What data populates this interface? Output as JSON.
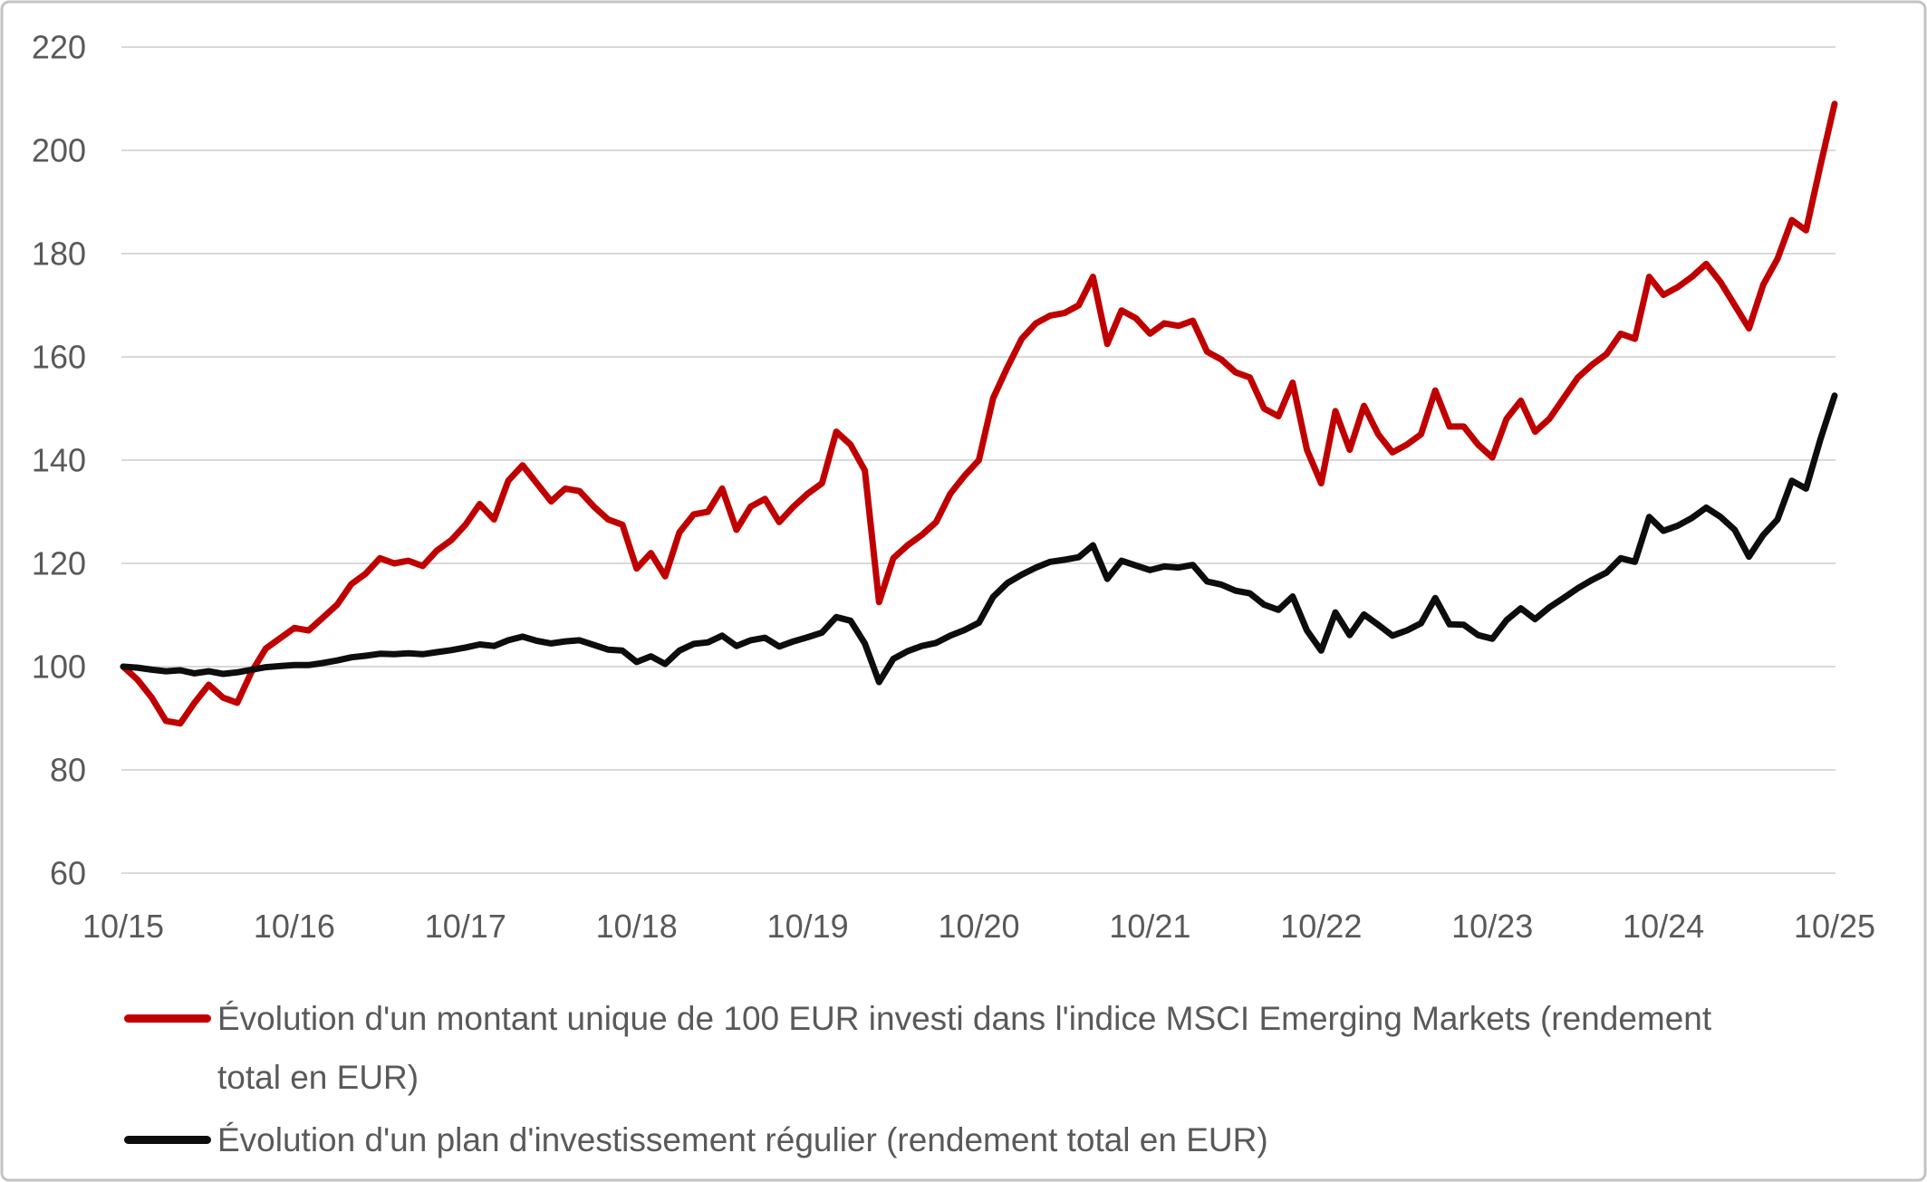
{
  "chart": {
    "background_color": "#FFFFFF",
    "frame_border_color": "#C3C3C3",
    "grid_color": "#D9D9D9",
    "tick_label_color": "#595959",
    "legend_text_color": "#595959"
  },
  "chart_data": {
    "type": "line",
    "title": "",
    "xlabel": "",
    "ylabel": "",
    "x_tick_labels": [
      "10/15",
      "10/16",
      "10/17",
      "10/18",
      "10/19",
      "10/20",
      "10/21",
      "10/22",
      "10/23",
      "10/24",
      "10/25"
    ],
    "points_per_label": 12,
    "n_points": 121,
    "x_range_note": "monthly points from 10/15 to 10/25",
    "ylim": [
      60,
      220
    ],
    "y_ticks": [
      220,
      200,
      180,
      160,
      140,
      120,
      100,
      80,
      60
    ],
    "grid": true,
    "legend_position": "bottom-left",
    "series": [
      {
        "name": "Évolution d'un montant unique de 100 EUR investi dans l'indice MSCI Emerging Markets (rendement total en EUR)",
        "legend_lines": [
          "Évolution d'un montant unique de 100 EUR investi dans l'indice MSCI Emerging Markets (rendement",
          "total en EUR)"
        ],
        "color": "#C00000",
        "values": [
          100,
          97.5,
          94,
          89.5,
          89,
          93,
          96.5,
          94,
          93,
          99,
          103.5,
          105.5,
          107.5,
          107,
          109.5,
          112,
          116,
          118,
          121,
          120,
          120.5,
          119.5,
          122.5,
          124.5,
          127.5,
          131.5,
          128.5,
          136,
          139,
          135.5,
          132,
          134.5,
          134,
          131,
          128.5,
          127.5,
          119,
          122,
          117.5,
          126,
          129.5,
          130,
          134.5,
          126.5,
          131,
          132.5,
          128,
          131,
          133.5,
          135.5,
          145.5,
          143,
          138,
          112.5,
          121,
          123.5,
          125.5,
          128,
          133.5,
          137,
          140,
          152,
          158,
          163.5,
          166.5,
          168,
          168.5,
          170,
          175.5,
          162.5,
          169,
          167.5,
          164.5,
          166.5,
          166,
          167,
          161,
          159.5,
          157,
          156,
          150,
          148.5,
          155,
          142,
          135.5,
          149.5,
          142,
          150.5,
          145,
          141.5,
          143,
          145,
          153.5,
          146.5,
          146.5,
          143,
          140.5,
          148,
          151.5,
          145.5,
          148,
          152,
          156,
          158.5,
          160.5,
          164.5,
          163.5,
          175.5,
          172,
          173.5,
          175.5,
          178,
          174.5,
          170,
          165.5,
          174,
          179,
          186.5,
          184.5,
          197,
          209
        ]
      },
      {
        "name": "Évolution d'un plan d'investissement régulier (rendement total en EUR)",
        "legend_lines": [
          "Évolution d'un plan d'investissement régulier (rendement total en EUR)"
        ],
        "color": "#0D0D0D",
        "values": [
          100,
          99.8,
          99.4,
          99.1,
          99.3,
          98.7,
          99.1,
          98.6,
          98.9,
          99.4,
          99.9,
          100.1,
          100.3,
          100.3,
          100.7,
          101.2,
          101.8,
          102.1,
          102.5,
          102.4,
          102.6,
          102.4,
          102.8,
          103.2,
          103.7,
          104.3,
          104,
          105.1,
          105.8,
          105,
          104.5,
          104.9,
          105.1,
          104.2,
          103.3,
          103.1,
          100.9,
          102,
          100.5,
          103.1,
          104.4,
          104.7,
          106,
          104,
          105.1,
          105.6,
          103.9,
          104.9,
          105.7,
          106.6,
          109.6,
          108.9,
          104.5,
          97,
          101.5,
          103,
          104,
          104.6,
          106,
          107.1,
          108.5,
          113.5,
          116.2,
          117.8,
          119.2,
          120.3,
          120.7,
          121.2,
          123.5,
          117,
          120.5,
          119.6,
          118.7,
          119.4,
          119.2,
          119.7,
          116.5,
          115.9,
          114.7,
          114.2,
          112,
          111,
          113.6,
          107,
          103.1,
          110.5,
          106.1,
          110.1,
          108.1,
          106,
          107,
          108.4,
          113.3,
          108.2,
          108.1,
          106.1,
          105.4,
          109,
          111.3,
          109.2,
          111.5,
          113.3,
          115.2,
          116.8,
          118.2,
          121,
          120.3,
          129,
          126.3,
          127.3,
          128.8,
          130.8,
          129,
          126.5,
          121.3,
          125.5,
          128.5,
          136,
          134.5,
          144,
          152.5
        ]
      }
    ]
  }
}
